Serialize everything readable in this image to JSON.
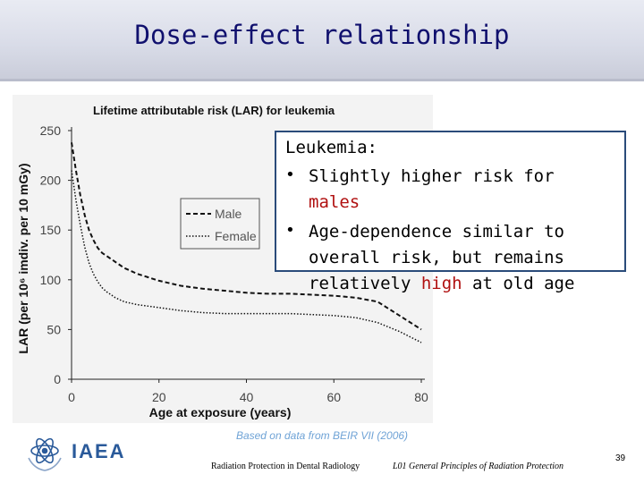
{
  "slide": {
    "title": "Dose-effect relationship",
    "page_number": "39",
    "source": "Based on data from BEIR VII (2006)",
    "footer_left": "Radiation Protection in Dental Radiology",
    "footer_mid": "L01 General Principles of Radiation Protection",
    "logo_text": "IAEA"
  },
  "callout": {
    "heading": "Leukemia:",
    "bullet1_pre": "Slightly higher risk for ",
    "bullet1_em": "males",
    "bullet2_pre": "Age-dependence similar to overall risk, but remains relatively ",
    "bullet2_em": "high",
    "bullet2_post": " at old age",
    "bullet_symbol": "•"
  },
  "colors": {
    "title": "#10106e",
    "emphasis": "#b01010",
    "callout_border": "#2a4b7a",
    "source": "#6fa3d6"
  },
  "chart_data": {
    "type": "line",
    "title": "Lifetime attributable risk (LAR) for leukemia",
    "xlabel": "Age at exposure (years)",
    "ylabel": "LAR (per 10⁶ imdiv. per 10 mGy)",
    "xlim": [
      0,
      80
    ],
    "ylim": [
      0,
      250
    ],
    "xticks": [
      0,
      20,
      40,
      60,
      80
    ],
    "yticks": [
      0,
      50,
      100,
      150,
      200,
      250
    ],
    "legend_position": "left",
    "series": [
      {
        "name": "Male",
        "style": "dashed",
        "x": [
          0,
          1,
          2,
          3,
          4,
          5,
          6,
          7,
          8,
          10,
          12,
          15,
          20,
          25,
          30,
          35,
          40,
          45,
          50,
          55,
          60,
          65,
          70,
          75,
          80
        ],
        "y": [
          238,
          210,
          185,
          165,
          150,
          140,
          132,
          127,
          124,
          118,
          112,
          106,
          99,
          94,
          91,
          89,
          87,
          86,
          86,
          85,
          84,
          82,
          78,
          64,
          50
        ]
      },
      {
        "name": "Female",
        "style": "dotted",
        "x": [
          0,
          1,
          2,
          3,
          4,
          5,
          6,
          7,
          8,
          10,
          12,
          15,
          20,
          25,
          30,
          35,
          40,
          45,
          50,
          55,
          60,
          65,
          70,
          75,
          80
        ],
        "y": [
          210,
          180,
          155,
          133,
          117,
          106,
          98,
          92,
          88,
          82,
          78,
          75,
          72,
          69,
          67,
          66,
          66,
          66,
          66,
          65,
          64,
          62,
          57,
          48,
          37
        ]
      }
    ]
  }
}
